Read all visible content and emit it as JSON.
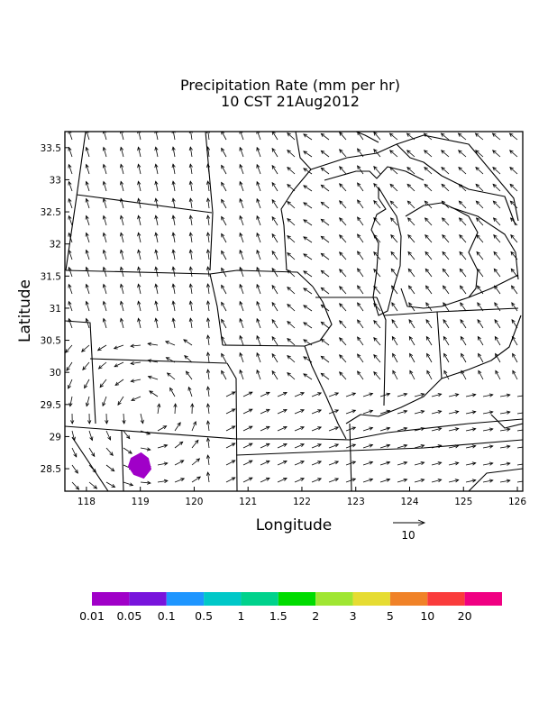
{
  "title": {
    "line1": "Precipitation Rate (mm per hr)",
    "line2": "10 CST 21Aug2012"
  },
  "axes": {
    "xlabel": "Longitude",
    "ylabel": "Latitude",
    "xlim": [
      117.6,
      126.1
    ],
    "ylim": [
      28.15,
      33.75
    ],
    "xticks": [
      "118",
      "119",
      "120",
      "121",
      "122",
      "123",
      "124",
      "125",
      "126"
    ],
    "yticks": [
      "28.5",
      "29",
      "29.5",
      "30",
      "30.5",
      "31",
      "31.5",
      "32",
      "32.5",
      "33",
      "33.5"
    ]
  },
  "vector_reference": {
    "label": "10"
  },
  "colorbar": {
    "labels": [
      "0.01",
      "0.05",
      "0.1",
      "0.5",
      "1",
      "1.5",
      "2",
      "3",
      "5",
      "10",
      "20"
    ],
    "colors": [
      "#a000c8",
      "#7814dc",
      "#1e96ff",
      "#00c8c8",
      "#00d28c",
      "#00dc00",
      "#a0e632",
      "#e6dc32",
      "#f08228",
      "#fa3c3c",
      "#f00082"
    ]
  },
  "precip_cells": [
    {
      "lon": 118.98,
      "lat": 28.55,
      "rate_class": "0.01",
      "color": "#a000c8"
    }
  ]
}
